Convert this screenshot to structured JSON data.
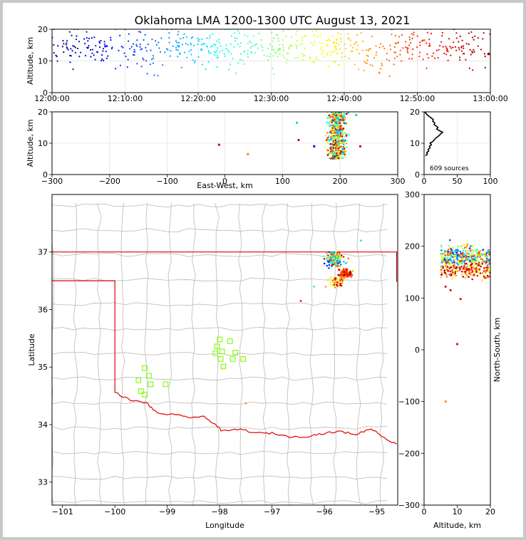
{
  "title": "Oklahoma LMA 1200-1300 UTC August 13, 2021",
  "colors": {
    "background_outer": "#c8c8c8",
    "state_border": "#e00000",
    "county_lines": "#c0c0c0",
    "stations": "#7cfc00",
    "projection_points": "#000000"
  },
  "chart_data": [
    {
      "id": "time_height",
      "type": "scatter",
      "ylabel": "Altitude, km",
      "xlabel": "",
      "xlim": [
        "12:00:00",
        "13:00:00"
      ],
      "ylim": [
        0,
        20
      ],
      "x_ticks": [
        "12:00:00",
        "12:10:00",
        "12:20:00",
        "12:30:00",
        "12:40:00",
        "12:50:00",
        "13:00:00"
      ],
      "y_ticks": [
        "0",
        "10",
        "20"
      ],
      "color_by": "time",
      "colormap": "jet",
      "grid": true
    },
    {
      "id": "east_west_height",
      "type": "scatter",
      "xlabel": "East-West, km",
      "ylabel": "Altitude, km",
      "xlim": [
        -300,
        300
      ],
      "ylim": [
        0,
        20
      ],
      "x_ticks": [
        "−300",
        "−200",
        "−100",
        "0",
        "100",
        "200",
        "300"
      ],
      "y_ticks": [
        "0",
        "10",
        "20"
      ],
      "cluster": {
        "x_center": 195,
        "x_spread": 14,
        "alt_min": 5,
        "alt_max": 20
      },
      "outliers": [
        {
          "x": -10,
          "y": 9.5,
          "color": "#cc0000"
        },
        {
          "x": 40,
          "y": 6.5,
          "color": "#ff8000"
        },
        {
          "x": 128,
          "y": 11,
          "color": "#cc0000"
        },
        {
          "x": 125,
          "y": 16.5,
          "color": "#00dcdc"
        },
        {
          "x": 155,
          "y": 9,
          "color": "#0000cc"
        },
        {
          "x": 228,
          "y": 19,
          "color": "#00dcdc"
        },
        {
          "x": 235,
          "y": 9,
          "color": "#cc0000"
        }
      ],
      "grid": true
    },
    {
      "id": "height_histogram",
      "type": "line",
      "xlim": [
        0,
        100
      ],
      "ylim": [
        0,
        20
      ],
      "x_ticks": [
        "0",
        "50",
        "100"
      ],
      "y_ticks": [
        "0",
        "10",
        "20"
      ],
      "annotation": "609 sources",
      "profile": [
        {
          "alt": 6.0,
          "count": 2
        },
        {
          "alt": 6.5,
          "count": 5
        },
        {
          "alt": 7.0,
          "count": 4
        },
        {
          "alt": 7.5,
          "count": 7
        },
        {
          "alt": 8.0,
          "count": 6
        },
        {
          "alt": 8.5,
          "count": 9
        },
        {
          "alt": 9.0,
          "count": 8
        },
        {
          "alt": 9.5,
          "count": 11
        },
        {
          "alt": 10.0,
          "count": 9
        },
        {
          "alt": 10.5,
          "count": 13
        },
        {
          "alt": 11.0,
          "count": 15
        },
        {
          "alt": 11.5,
          "count": 17
        },
        {
          "alt": 12.0,
          "count": 20
        },
        {
          "alt": 12.5,
          "count": 23
        },
        {
          "alt": 13.0,
          "count": 25
        },
        {
          "alt": 13.5,
          "count": 28
        },
        {
          "alt": 14.0,
          "count": 23
        },
        {
          "alt": 14.5,
          "count": 19
        },
        {
          "alt": 15.0,
          "count": 21
        },
        {
          "alt": 15.5,
          "count": 18
        },
        {
          "alt": 16.0,
          "count": 15
        },
        {
          "alt": 16.5,
          "count": 16
        },
        {
          "alt": 17.0,
          "count": 13
        },
        {
          "alt": 17.5,
          "count": 14
        },
        {
          "alt": 18.0,
          "count": 11
        },
        {
          "alt": 18.5,
          "count": 8
        },
        {
          "alt": 19.0,
          "count": 5
        },
        {
          "alt": 19.5,
          "count": 3
        },
        {
          "alt": 20.0,
          "count": 1
        }
      ]
    },
    {
      "id": "plan_view_map",
      "type": "scatter",
      "xlabel": "Longitude",
      "ylabel": "Latitude",
      "xlim": [
        -101.2,
        -94.6
      ],
      "ylim": [
        32.6,
        38.0
      ],
      "x_ticks": [
        "−101",
        "−100",
        "−99",
        "−98",
        "−97",
        "−96",
        "−95"
      ],
      "y_ticks": [
        "33",
        "34",
        "35",
        "36",
        "37"
      ],
      "clusters": [
        {
          "lon_center": -95.8,
          "lat_center": 36.88,
          "lon_spread": 0.12,
          "lat_spread": 0.1,
          "n": 200
        },
        {
          "lon_center": -95.6,
          "lat_center": 36.62,
          "lon_spread": 0.1,
          "lat_spread": 0.06,
          "n": 120
        },
        {
          "lon_center": -95.75,
          "lat_center": 36.48,
          "lon_spread": 0.12,
          "lat_spread": 0.08,
          "n": 50
        }
      ],
      "outliers": [
        {
          "lon": -96.2,
          "lat": 36.4,
          "color": "#00dcdc"
        },
        {
          "lon": -96.45,
          "lat": 36.15,
          "color": "#cc0000"
        },
        {
          "lon": -97.5,
          "lat": 34.37,
          "color": "#ff8000"
        },
        {
          "lon": -96.0,
          "lat": 36.8,
          "color": "#0000cc"
        },
        {
          "lon": -95.3,
          "lat": 37.2,
          "color": "#00dcdc"
        }
      ],
      "stations": [
        {
          "lon": -98.0,
          "lat": 35.48
        },
        {
          "lon": -97.8,
          "lat": 35.45
        },
        {
          "lon": -98.05,
          "lat": 35.36
        },
        {
          "lon": -97.95,
          "lat": 35.27
        },
        {
          "lon": -98.08,
          "lat": 35.24
        },
        {
          "lon": -97.7,
          "lat": 35.25
        },
        {
          "lon": -97.55,
          "lat": 35.14
        },
        {
          "lon": -97.75,
          "lat": 35.14
        },
        {
          "lon": -97.98,
          "lat": 35.14
        },
        {
          "lon": -97.93,
          "lat": 35.01
        },
        {
          "lon": -99.43,
          "lat": 34.98
        },
        {
          "lon": -99.35,
          "lat": 34.85
        },
        {
          "lon": -99.55,
          "lat": 34.77
        },
        {
          "lon": -99.32,
          "lat": 34.7
        },
        {
          "lon": -99.03,
          "lat": 34.7
        },
        {
          "lon": -99.5,
          "lat": 34.58
        },
        {
          "lon": -99.43,
          "lat": 34.52
        }
      ]
    },
    {
      "id": "north_south_height",
      "type": "scatter",
      "xlabel": "Altitude, km",
      "ylabel": "North-South, km",
      "xlim": [
        0,
        20
      ],
      "ylim": [
        -300,
        300
      ],
      "x_ticks": [
        "0",
        "10",
        "20"
      ],
      "y_ticks": [
        "−300",
        "−200",
        "−100",
        "0",
        "100",
        "200",
        "300"
      ],
      "outliers": [
        {
          "alt": 10,
          "ns": 11,
          "color": "#cc0000"
        },
        {
          "alt": 6.5,
          "ns": -100,
          "color": "#ff8000"
        },
        {
          "alt": 11,
          "ns": 98,
          "color": "#cc0000"
        },
        {
          "alt": 8,
          "ns": 115,
          "color": "#cc0000"
        },
        {
          "alt": 6.5,
          "ns": 122,
          "color": "#cc0000"
        }
      ]
    }
  ]
}
